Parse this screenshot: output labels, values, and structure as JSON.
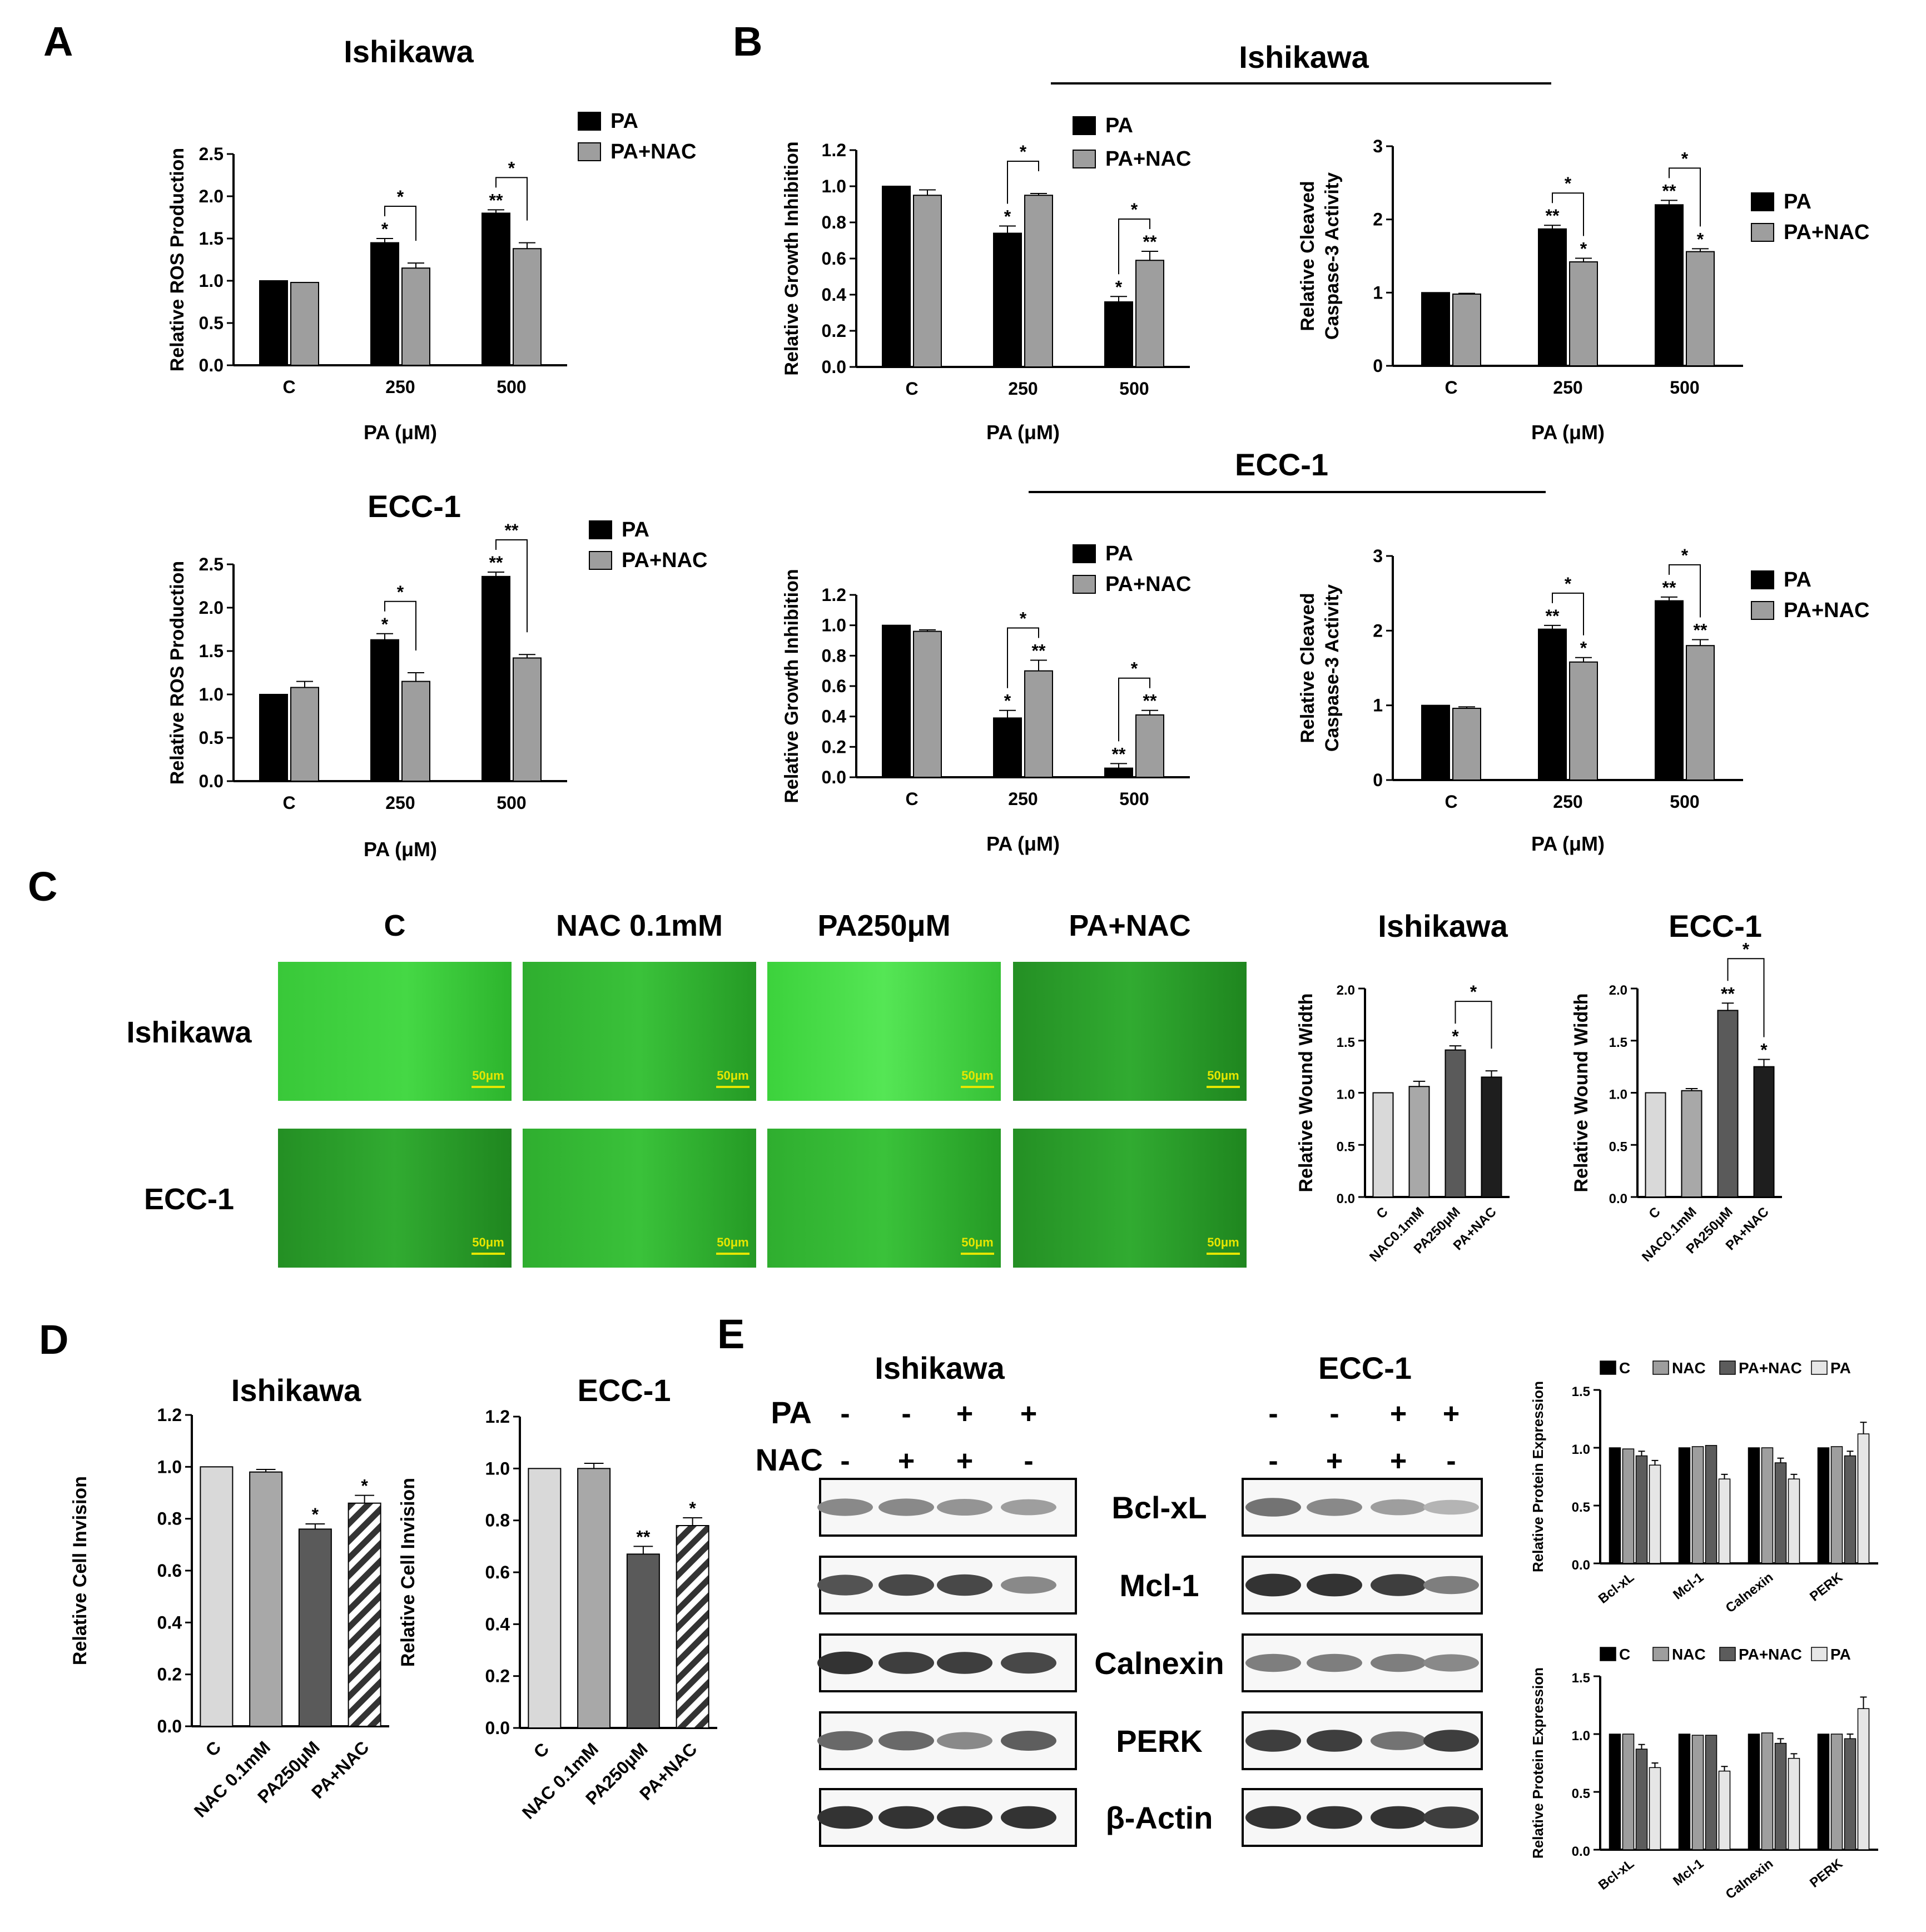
{
  "colors": {
    "pa": "#000000",
    "pa_nac": "#9e9e9e",
    "c_light": "#d9d9d9",
    "nac_mid": "#a8a8a8",
    "pa250_dark": "#5a5a5a",
    "panac_black": "#1e1e1e",
    "micro_green": "#2fc92f",
    "scalebar": "#e6e600"
  },
  "panels": {
    "A": "A",
    "B": "B",
    "C": "C",
    "D": "D",
    "E": "E"
  },
  "lines": {
    "ishikawa": "Ishikawa",
    "ecc1": "ECC-1"
  },
  "chart_data": [
    {
      "id": "A_ishikawa",
      "type": "bar",
      "title": "Ishikawa",
      "categories": [
        "C",
        "250",
        "500"
      ],
      "xlabel": "PA (μM)",
      "ylabel": "Relative ROS  Production",
      "ylim": [
        0,
        2.5
      ],
      "yticks": [
        "0.0",
        "0.5",
        "1.0",
        "1.5",
        "2.0",
        "2.5"
      ],
      "series": [
        {
          "name": "PA",
          "values": [
            1.0,
            1.45,
            1.8
          ],
          "errors": [
            0,
            0.05,
            0.04
          ],
          "stars": [
            "",
            "*",
            "**"
          ]
        },
        {
          "name": "PA+NAC",
          "values": [
            0.98,
            1.15,
            1.38
          ],
          "errors": [
            0,
            0.06,
            0.07
          ],
          "stars": [
            "",
            "",
            ""
          ]
        }
      ],
      "brackets": [
        {
          "cat": 1,
          "label": "*"
        },
        {
          "cat": 2,
          "label": "*"
        }
      ]
    },
    {
      "id": "A_ecc1",
      "type": "bar",
      "title": "ECC-1",
      "categories": [
        "C",
        "250",
        "500"
      ],
      "xlabel": "PA (μM)",
      "ylabel": "Relative ROS  Production",
      "ylim": [
        0,
        2.5
      ],
      "yticks": [
        "0.0",
        "0.5",
        "1.0",
        "1.5",
        "2.0",
        "2.5"
      ],
      "series": [
        {
          "name": "PA",
          "values": [
            1.0,
            1.63,
            2.36
          ],
          "errors": [
            0,
            0.07,
            0.05
          ],
          "stars": [
            "",
            "*",
            "**"
          ]
        },
        {
          "name": "PA+NAC",
          "values": [
            1.08,
            1.15,
            1.42
          ],
          "errors": [
            0.07,
            0.1,
            0.04
          ],
          "stars": [
            "",
            "",
            ""
          ]
        }
      ],
      "brackets": [
        {
          "cat": 1,
          "label": "*"
        },
        {
          "cat": 2,
          "label": "**"
        }
      ]
    },
    {
      "id": "B_ishikawa_growth",
      "type": "bar",
      "categories": [
        "C",
        "250",
        "500"
      ],
      "xlabel": "PA (μM)",
      "ylabel": "Relative Growth Inhibition",
      "ylim": [
        0,
        1.2
      ],
      "yticks": [
        "0.0",
        "0.2",
        "0.4",
        "0.6",
        "0.8",
        "1.0",
        "1.2"
      ],
      "series": [
        {
          "name": "PA",
          "values": [
            1.0,
            0.74,
            0.36
          ],
          "errors": [
            0,
            0.04,
            0.03
          ],
          "stars": [
            "",
            "*",
            "*"
          ]
        },
        {
          "name": "PA+NAC",
          "values": [
            0.95,
            0.95,
            0.59
          ],
          "errors": [
            0.03,
            0.01,
            0.05
          ],
          "stars": [
            "",
            "",
            "**"
          ]
        }
      ],
      "brackets": [
        {
          "cat": 1,
          "label": "*"
        },
        {
          "cat": 2,
          "label": "*"
        }
      ]
    },
    {
      "id": "B_ishikawa_casp",
      "type": "bar",
      "categories": [
        "C",
        "250",
        "500"
      ],
      "xlabel": "PA (μM)",
      "ylabel": "Relative Cleaved\nCaspase-3 Activity",
      "ylim": [
        0,
        3
      ],
      "yticks": [
        "0",
        "1",
        "2",
        "3"
      ],
      "series": [
        {
          "name": "PA",
          "values": [
            1.0,
            1.87,
            2.2
          ],
          "errors": [
            0,
            0.05,
            0.06
          ],
          "stars": [
            "",
            "**",
            "**"
          ]
        },
        {
          "name": "PA+NAC",
          "values": [
            0.98,
            1.42,
            1.56
          ],
          "errors": [
            0.01,
            0.05,
            0.04
          ],
          "stars": [
            "",
            "*",
            "*"
          ]
        }
      ],
      "brackets": [
        {
          "cat": 1,
          "label": "*"
        },
        {
          "cat": 2,
          "label": "*"
        }
      ]
    },
    {
      "id": "B_ecc1_growth",
      "type": "bar",
      "categories": [
        "C",
        "250",
        "500"
      ],
      "xlabel": "PA (μM)",
      "ylabel": "Relative Growth Inhibition",
      "ylim": [
        0,
        1.2
      ],
      "yticks": [
        "0.0",
        "0.2",
        "0.4",
        "0.6",
        "0.8",
        "1.0",
        "1.2"
      ],
      "series": [
        {
          "name": "PA",
          "values": [
            1.0,
            0.39,
            0.06
          ],
          "errors": [
            0,
            0.05,
            0.03
          ],
          "stars": [
            "",
            "*",
            "**"
          ]
        },
        {
          "name": "PA+NAC",
          "values": [
            0.96,
            0.7,
            0.41
          ],
          "errors": [
            0.01,
            0.07,
            0.03
          ],
          "stars": [
            "",
            "**",
            "**"
          ]
        }
      ],
      "brackets": [
        {
          "cat": 1,
          "label": "*"
        },
        {
          "cat": 2,
          "label": "*"
        }
      ]
    },
    {
      "id": "B_ecc1_casp",
      "type": "bar",
      "categories": [
        "C",
        "250",
        "500"
      ],
      "xlabel": "PA (μM)",
      "ylabel": "Relative Cleaved\nCaspase-3 Activity",
      "ylim": [
        0,
        3
      ],
      "yticks": [
        "0",
        "1",
        "2",
        "3"
      ],
      "series": [
        {
          "name": "PA",
          "values": [
            1.0,
            2.02,
            2.4
          ],
          "errors": [
            0,
            0.05,
            0.05
          ],
          "stars": [
            "",
            "**",
            "**"
          ]
        },
        {
          "name": "PA+NAC",
          "values": [
            0.96,
            1.58,
            1.8
          ],
          "errors": [
            0.02,
            0.06,
            0.08
          ],
          "stars": [
            "",
            "*",
            "**"
          ]
        }
      ],
      "brackets": [
        {
          "cat": 1,
          "label": "*"
        },
        {
          "cat": 2,
          "label": "*"
        }
      ]
    },
    {
      "id": "C_ishikawa",
      "type": "bar",
      "title": "Ishikawa",
      "categories": [
        "C",
        "NAC0.1mM",
        "PA250μM",
        "PA+NAC"
      ],
      "ylabel": "Relative Wound Width",
      "ylim": [
        0,
        2.0
      ],
      "yticks": [
        "0.0",
        "0.5",
        "1.0",
        "1.5",
        "2.0"
      ],
      "values": [
        1.0,
        1.06,
        1.41,
        1.15
      ],
      "errors": [
        0,
        0.05,
        0.04,
        0.06
      ],
      "stars": [
        "",
        "",
        "*",
        ""
      ],
      "brackets": [
        {
          "from": 2,
          "to": 3,
          "label": "*"
        }
      ]
    },
    {
      "id": "C_ecc1",
      "type": "bar",
      "title": "ECC-1",
      "categories": [
        "C",
        "NAC0.1mM",
        "PA250μM",
        "PA+NAC"
      ],
      "ylabel": "Relative Wound Width",
      "ylim": [
        0,
        2.0
      ],
      "yticks": [
        "0.0",
        "0.5",
        "1.0",
        "1.5",
        "2.0"
      ],
      "values": [
        1.0,
        1.02,
        1.79,
        1.25
      ],
      "errors": [
        0,
        0.02,
        0.07,
        0.07
      ],
      "stars": [
        "",
        "",
        "**",
        "*"
      ],
      "brackets": [
        {
          "from": 2,
          "to": 3,
          "label": "*"
        }
      ]
    },
    {
      "id": "D_ishikawa",
      "type": "bar",
      "title": "Ishikawa",
      "categories": [
        "C",
        "NAC 0.1mM",
        "PA250μM",
        "PA+NAC"
      ],
      "ylabel": "Relative Cell Invision",
      "ylim": [
        0,
        1.2
      ],
      "yticks": [
        "0.0",
        "0.2",
        "0.4",
        "0.6",
        "0.8",
        "1.0",
        "1.2"
      ],
      "values": [
        1.0,
        0.98,
        0.76,
        0.86
      ],
      "errors": [
        0,
        0.01,
        0.02,
        0.03
      ],
      "stars": [
        "",
        "",
        "*",
        "*"
      ]
    },
    {
      "id": "D_ecc1",
      "type": "bar",
      "title": "ECC-1",
      "categories": [
        "C",
        "NAC 0.1mM",
        "PA250μM",
        "PA+NAC"
      ],
      "ylabel": "Relative Cell Invision",
      "ylim": [
        0,
        1.2
      ],
      "yticks": [
        "0.0",
        "0.2",
        "0.4",
        "0.6",
        "0.8",
        "1.0",
        "1.2"
      ],
      "values": [
        1.0,
        1.0,
        0.67,
        0.78
      ],
      "errors": [
        0,
        0.02,
        0.03,
        0.03
      ],
      "stars": [
        "",
        "",
        "**",
        "*"
      ]
    },
    {
      "id": "E_ishikawa",
      "type": "bar",
      "categories": [
        "Bcl-xL",
        "Mcl-1",
        "Calnexin",
        "PERK"
      ],
      "ylabel": "Relative Protein Expression",
      "ylim": [
        0,
        1.5
      ],
      "yticks": [
        "0.0",
        "0.5",
        "1.0",
        "1.5"
      ],
      "series": [
        {
          "name": "C",
          "values": [
            1.0,
            1.0,
            1.0,
            1.0
          ]
        },
        {
          "name": "NAC",
          "values": [
            0.99,
            1.01,
            1.0,
            1.01
          ]
        },
        {
          "name": "PA+NAC",
          "values": [
            0.93,
            1.02,
            0.87,
            0.93
          ]
        },
        {
          "name": "PA",
          "values": [
            0.85,
            0.73,
            0.73,
            1.12
          ]
        }
      ]
    },
    {
      "id": "E_ecc1",
      "type": "bar",
      "categories": [
        "Bcl-xL",
        "Mcl-1",
        "Calnexin",
        "PERK"
      ],
      "ylabel": "Relative Protein Expression",
      "ylim": [
        0,
        1.5
      ],
      "yticks": [
        "0.0",
        "0.5",
        "1.0",
        "1.5"
      ],
      "series": [
        {
          "name": "C",
          "values": [
            1.0,
            1.0,
            1.0,
            1.0
          ]
        },
        {
          "name": "NAC",
          "values": [
            1.0,
            0.99,
            1.01,
            1.0
          ]
        },
        {
          "name": "PA+NAC",
          "values": [
            0.87,
            0.99,
            0.92,
            0.96
          ]
        },
        {
          "name": "PA",
          "values": [
            0.71,
            0.68,
            0.79,
            1.22
          ]
        }
      ]
    }
  ],
  "micrographs": {
    "columns": [
      "C",
      "NAC 0.1mM",
      "PA250μM",
      "PA+NAC"
    ],
    "rows": [
      "Ishikawa",
      "ECC-1"
    ],
    "scale": "50μm"
  },
  "western": {
    "left_title": "Ishikawa",
    "right_title": "ECC-1",
    "row_pa_label": "PA",
    "row_nac_label": "NAC",
    "pa_signs": [
      "-",
      "-",
      "+",
      "+"
    ],
    "nac_signs": [
      "-",
      "+",
      "+",
      "-"
    ],
    "proteins": [
      "Bcl-xL",
      "Mcl-1",
      "Calnexin",
      "PERK",
      "β-Actin"
    ],
    "intensity_left": [
      [
        0.55,
        0.55,
        0.5,
        0.45
      ],
      [
        0.8,
        0.85,
        0.85,
        0.55
      ],
      [
        0.95,
        0.9,
        0.9,
        0.85
      ],
      [
        0.7,
        0.7,
        0.55,
        0.75
      ],
      [
        0.95,
        0.95,
        0.95,
        0.95
      ]
    ],
    "intensity_right": [
      [
        0.65,
        0.55,
        0.45,
        0.35
      ],
      [
        0.95,
        0.95,
        0.9,
        0.6
      ],
      [
        0.6,
        0.6,
        0.6,
        0.55
      ],
      [
        0.9,
        0.9,
        0.65,
        0.9
      ],
      [
        0.95,
        0.95,
        0.95,
        0.9
      ]
    ]
  }
}
